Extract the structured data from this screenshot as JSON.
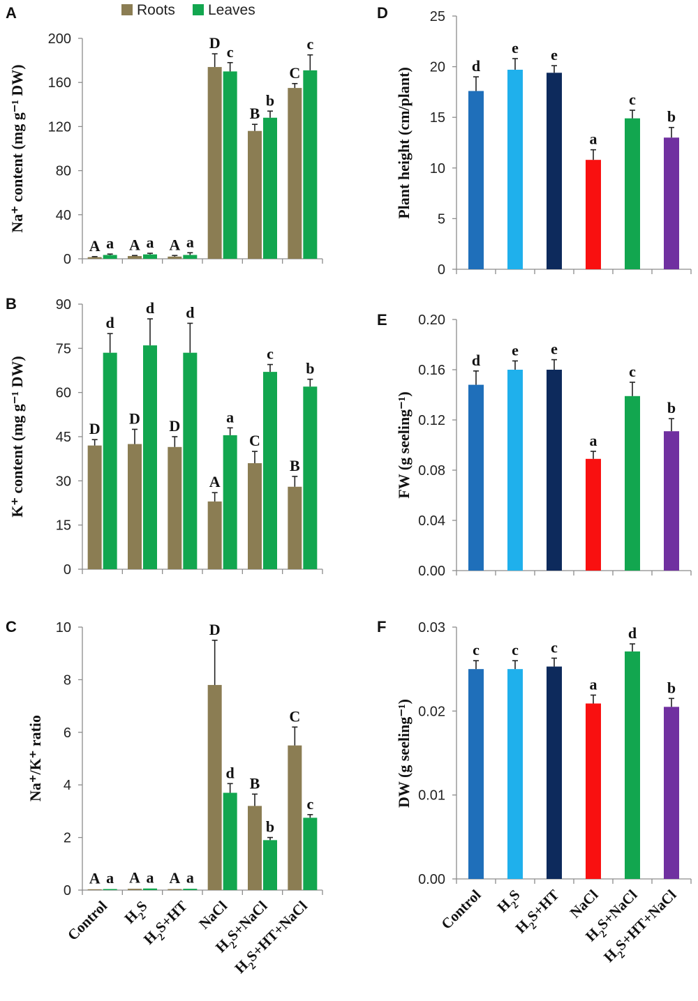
{
  "legend": [
    {
      "name": "Roots",
      "color": "#8b7d53"
    },
    {
      "name": "Leaves",
      "color": "#12a64f"
    }
  ],
  "categories": [
    "Control",
    "H2S",
    "H2S+HT",
    "NaCl",
    "H2S+NaCl",
    "H2S+HT+NaCl"
  ],
  "bar_colors": [
    "#1f6fba",
    "#1fb0ec",
    "#0d2a5c",
    "#f91010",
    "#12a64f",
    "#7030a0"
  ],
  "chart_data": [
    {
      "panel": "A",
      "type": "bar",
      "ylabel": "Na⁺ content (mg g⁻¹ DW)",
      "ylim": [
        0,
        200
      ],
      "yticks": [
        "0",
        "40",
        "80",
        "120",
        "160",
        "200"
      ],
      "series": [
        {
          "name": "Roots",
          "values": [
            1.5,
            2.5,
            2,
            174,
            116,
            155
          ],
          "errors": [
            0.5,
            0.5,
            1,
            12,
            6,
            4
          ],
          "labels": [
            "A",
            "A",
            "A",
            "D",
            "B",
            "C"
          ]
        },
        {
          "name": "Leaves",
          "values": [
            3.5,
            4,
            3.5,
            170,
            128,
            171
          ],
          "errors": [
            0.8,
            1,
            2,
            8,
            6,
            14
          ],
          "labels": [
            "a",
            "a",
            "a",
            "c",
            "b",
            "c"
          ]
        }
      ]
    },
    {
      "panel": "B",
      "type": "bar",
      "ylabel": "K⁺ content (mg g⁻¹ DW)",
      "ylim": [
        0,
        90
      ],
      "yticks": [
        "0",
        "15",
        "30",
        "45",
        "60",
        "75",
        "90"
      ],
      "series": [
        {
          "name": "Roots",
          "values": [
            42,
            42.5,
            41.5,
            23,
            36,
            28
          ],
          "errors": [
            2,
            5,
            3.5,
            3,
            4,
            3.5
          ],
          "labels": [
            "D",
            "D",
            "D",
            "A",
            "C",
            "B"
          ]
        },
        {
          "name": "Leaves",
          "values": [
            73.5,
            76,
            73.5,
            45.5,
            67,
            62
          ],
          "errors": [
            6.5,
            9,
            10,
            2.5,
            2.5,
            2.5
          ],
          "labels": [
            "d",
            "d",
            "d",
            "a",
            "c",
            "b"
          ]
        }
      ]
    },
    {
      "panel": "C",
      "type": "bar",
      "ylabel": "Na⁺/K⁺ ratio",
      "ylim": [
        0,
        10
      ],
      "yticks": [
        "0",
        "2",
        "4",
        "6",
        "8",
        "10"
      ],
      "series": [
        {
          "name": "Roots",
          "values": [
            0.03,
            0.05,
            0.04,
            7.8,
            3.2,
            5.5
          ],
          "errors": [
            0.01,
            0.01,
            0.01,
            1.7,
            0.45,
            0.7
          ],
          "labels": [
            "A",
            "A",
            "A",
            "D",
            "B",
            "C"
          ]
        },
        {
          "name": "Leaves",
          "values": [
            0.04,
            0.06,
            0.05,
            3.7,
            1.9,
            2.75
          ],
          "errors": [
            0.01,
            0.01,
            0.01,
            0.35,
            0.1,
            0.12
          ],
          "labels": [
            "a",
            "a",
            "a",
            "d",
            "b",
            "c"
          ]
        }
      ]
    },
    {
      "panel": "D",
      "type": "bar",
      "ylabel": "Plant height (cm/plant)",
      "ylim": [
        0,
        25
      ],
      "yticks": [
        "0",
        "5",
        "10",
        "15",
        "20",
        "25"
      ],
      "series": [
        {
          "name": "Plant height",
          "values": [
            17.6,
            19.7,
            19.4,
            10.8,
            14.9,
            13
          ],
          "errors": [
            1.4,
            1.1,
            0.7,
            1,
            0.8,
            1
          ],
          "labels": [
            "d",
            "e",
            "e",
            "a",
            "c",
            "b"
          ]
        }
      ]
    },
    {
      "panel": "E",
      "type": "bar",
      "ylabel": "FW (g seeling⁻¹)",
      "ylim": [
        0,
        0.2
      ],
      "yticks": [
        "0.00",
        "0.04",
        "0.08",
        "0.12",
        "0.16",
        "0.20"
      ],
      "series": [
        {
          "name": "FW",
          "values": [
            0.148,
            0.16,
            0.16,
            0.089,
            0.139,
            0.111
          ],
          "errors": [
            0.011,
            0.007,
            0.008,
            0.006,
            0.011,
            0.01
          ],
          "labels": [
            "d",
            "e",
            "e",
            "a",
            "c",
            "b"
          ]
        }
      ]
    },
    {
      "panel": "F",
      "type": "bar",
      "ylabel": "DW (g seeling⁻¹)",
      "ylim": [
        0,
        0.03
      ],
      "yticks": [
        "0.00",
        "0.01",
        "0.02",
        "0.03"
      ],
      "series": [
        {
          "name": "DW",
          "values": [
            0.025,
            0.025,
            0.0253,
            0.0209,
            0.0271,
            0.0205
          ],
          "errors": [
            0.001,
            0.001,
            0.001,
            0.001,
            0.0009,
            0.001
          ],
          "labels": [
            "c",
            "c",
            "c",
            "a",
            "d",
            "b"
          ]
        }
      ]
    }
  ]
}
